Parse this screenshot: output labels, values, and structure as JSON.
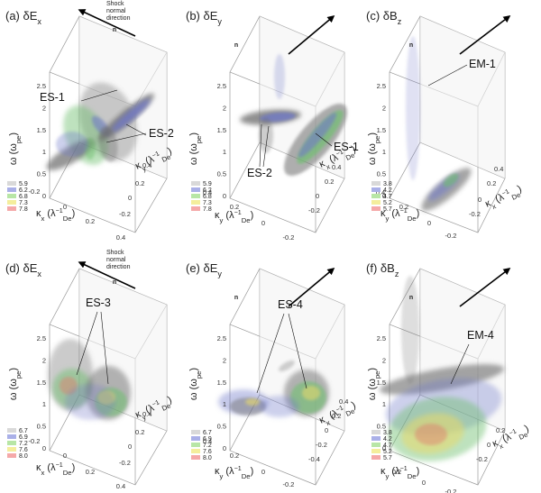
{
  "figure": {
    "panels": [
      {
        "id": "a",
        "tag": "(a)",
        "component": "δE",
        "component_sub": "x",
        "shock_label": [
          "Shock",
          "normal",
          "direction"
        ],
        "arrow_label": "n",
        "annotations": [
          "ES-1",
          "ES-2"
        ],
        "z_label": "ω (ω",
        "z_sub": "pe",
        "z_ticks": [
          "2.5",
          "2",
          "1.5",
          "1",
          "0.5",
          "0"
        ],
        "front_axis": "κ",
        "front_axis_sub": "x",
        "front_ticks": [
          "-0.2",
          "0",
          "0.2",
          "0.4"
        ],
        "side_axis": "κ",
        "side_axis_sub": "y",
        "side_ticks": [
          "0.4",
          "0.2",
          "0",
          "-0.2"
        ],
        "legend": [
          "5.9",
          "6.2",
          "6.8",
          "7.3",
          "7.8"
        ]
      },
      {
        "id": "b",
        "tag": "(b)",
        "component": "δE",
        "component_sub": "y",
        "shock_label": [],
        "arrow_label": "n",
        "annotations": [
          "ES-1",
          "ES-2"
        ],
        "z_label": "ω (ω",
        "z_sub": "pe",
        "z_ticks": [
          "2.5",
          "2",
          "1.5",
          "1",
          "0.5",
          "0"
        ],
        "front_axis": "κ",
        "front_axis_sub": "y",
        "front_ticks": [
          "0.4",
          "0.2",
          "0",
          "-0.2"
        ],
        "side_axis": "κ",
        "side_axis_sub": "x",
        "side_ticks": [
          "-0.2",
          "0",
          "0.2",
          "0.4"
        ],
        "legend": [
          "5.9",
          "6.2",
          "6.8",
          "7.3",
          "7.8"
        ]
      },
      {
        "id": "c",
        "tag": "(c)",
        "component": "δB",
        "component_sub": "z",
        "shock_label": [],
        "arrow_label": "n",
        "annotations": [
          "EM-1"
        ],
        "z_label": "ω (ω",
        "z_sub": "pe",
        "z_ticks": [
          "2.5",
          "2",
          "1.5",
          "1",
          "0.5",
          "0"
        ],
        "front_axis": "κ",
        "front_axis_sub": "y",
        "front_ticks": [
          "0.4",
          "0.2",
          "0",
          "-0.2"
        ],
        "side_axis": "κ",
        "side_axis_sub": "x",
        "side_ticks": [
          "-0.2",
          "0",
          "0.2",
          "0.4"
        ],
        "legend": [
          "3.8",
          "4.2",
          "4.7",
          "5.2",
          "5.7"
        ]
      },
      {
        "id": "d",
        "tag": "(d)",
        "component": "δE",
        "component_sub": "x",
        "shock_label": [
          "Shock",
          "normal",
          "direction"
        ],
        "arrow_label": "n",
        "annotations": [
          "ES-3"
        ],
        "z_label": "ω (ω",
        "z_sub": "pe",
        "z_ticks": [
          "2.5",
          "2",
          "1.5",
          "1",
          "0.5",
          "0"
        ],
        "front_axis": "κ",
        "front_axis_sub": "x",
        "front_ticks": [
          "-0.2",
          "0",
          "0.2",
          "0.4"
        ],
        "side_axis": "κ",
        "side_axis_sub": "y",
        "side_ticks": [
          "0.4",
          "0.2",
          "0",
          "-0.2"
        ],
        "legend": [
          "6.7",
          "6.9",
          "7.2",
          "7.6",
          "8.0"
        ]
      },
      {
        "id": "e",
        "tag": "(e)",
        "component": "δE",
        "component_sub": "y",
        "shock_label": [],
        "arrow_label": "n",
        "annotations": [
          "ES-4"
        ],
        "z_label": "ω (ω",
        "z_sub": "pe",
        "z_ticks": [
          "2.5",
          "2",
          "1.5",
          "1",
          "0.5",
          "0"
        ],
        "front_axis": "κ",
        "front_axis_sub": "y",
        "front_ticks": [
          "0.4",
          "0.2",
          "0",
          "-0.2"
        ],
        "side_axis": "κ",
        "side_axis_sub": "x",
        "side_ticks": [
          "-0.4",
          "-0.2",
          "0",
          "0.2",
          "0.4"
        ],
        "legend": [
          "6.7",
          "6.9",
          "7.2",
          "7.6",
          "8.0"
        ]
      },
      {
        "id": "f",
        "tag": "(f)",
        "component": "δB",
        "component_sub": "z",
        "shock_label": [],
        "arrow_label": "n",
        "annotations": [
          "EM-4"
        ],
        "z_label": "ω (ω",
        "z_sub": "pe",
        "z_ticks": [
          "2.5",
          "2",
          "1.5",
          "1",
          "0.5",
          "0"
        ],
        "front_axis": "κ",
        "front_axis_sub": "y",
        "front_ticks": [
          "0.2",
          "0",
          "-0.2"
        ],
        "side_axis": "κ",
        "side_axis_sub": "x",
        "side_ticks": [
          "-0.2",
          "0",
          "0.2"
        ],
        "legend": [
          "3.8",
          "4.2",
          "4.7",
          "5.2",
          "5.7"
        ]
      }
    ],
    "axis_unit_symbol": "λ",
    "axis_unit_sup": "−1",
    "axis_unit_sub": "De",
    "legend_colors": [
      "#d9d9d9",
      "#aab0e8",
      "#b8e6a6",
      "#f4ee9c",
      "#f5a9a9"
    ],
    "blob_colors": {
      "grey": "#6b6b6b",
      "blue": "#6f78c8",
      "green": "#6fbf6f",
      "yellow": "#e8d86a",
      "red": "#e07a6a"
    }
  }
}
